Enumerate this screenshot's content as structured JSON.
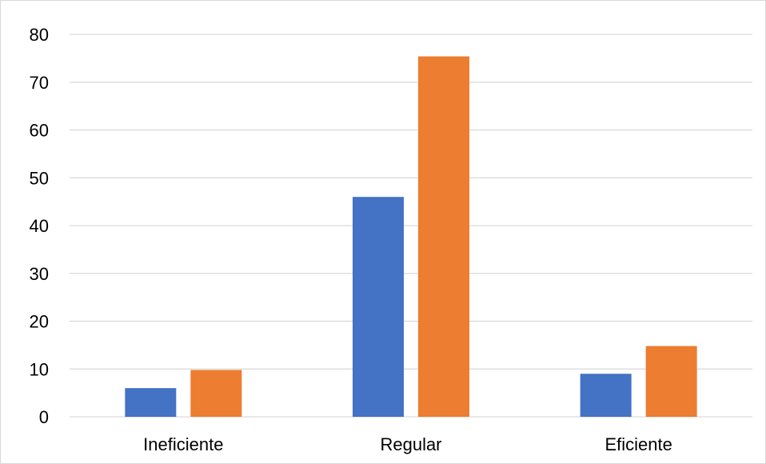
{
  "chart_data": {
    "type": "bar",
    "title": "",
    "xlabel": "",
    "ylabel": "",
    "categories": [
      "Ineficiente",
      "Regular",
      "Eficiente"
    ],
    "series": [
      {
        "values": [
          6,
          46,
          9
        ],
        "color": "#4472C4"
      },
      {
        "values": [
          9.8,
          75.4,
          14.8
        ],
        "color": "#ED7D31"
      }
    ],
    "ylim": [
      0,
      80
    ],
    "yticks": [
      "0",
      "10",
      "20",
      "30",
      "40",
      "50",
      "60",
      "70",
      "80"
    ],
    "grid": true,
    "gridline_color": "#d9d9d9",
    "legend": "none"
  }
}
